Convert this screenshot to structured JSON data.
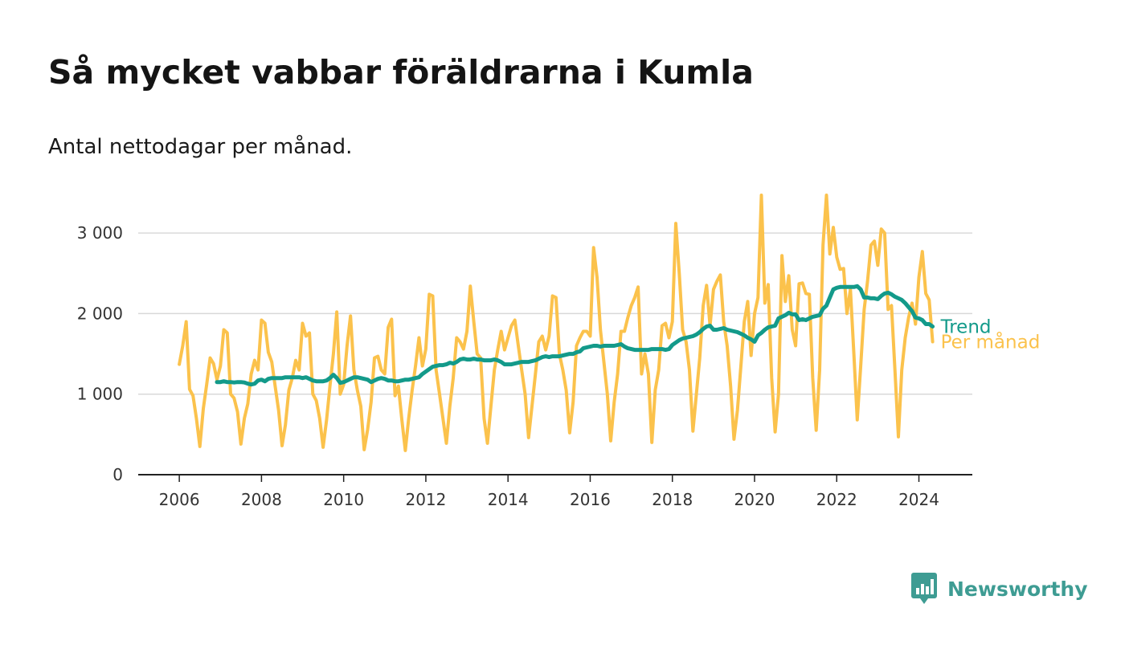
{
  "header": {
    "title": "Så mycket vabbar föräldrarna i Kumla",
    "subtitle": "Antal nettodagar per månad."
  },
  "brand": {
    "name": "Newsworthy",
    "icon": "newsworthy-logo-icon"
  },
  "colors": {
    "monthly": "#fbc24c",
    "trend": "#139a8a",
    "grid": "#d9d9d9",
    "axis": "#222222",
    "brand": "#3e9c93"
  },
  "chart_data": {
    "type": "line",
    "title": "Så mycket vabbar föräldrarna i Kumla",
    "subtitle": "Antal nettodagar per månad.",
    "xlabel": "",
    "ylabel": "",
    "xlim": [
      2005,
      2025.3
    ],
    "ylim": [
      0,
      3500
    ],
    "x_ticks": [
      2006,
      2008,
      2010,
      2012,
      2014,
      2016,
      2018,
      2020,
      2022,
      2024
    ],
    "x_tick_labels": [
      "2006",
      "2008",
      "2010",
      "2012",
      "2014",
      "2016",
      "2018",
      "2020",
      "2022",
      "2024"
    ],
    "y_ticks": [
      0,
      1000,
      2000,
      3000
    ],
    "y_tick_labels": [
      "0",
      "1 000",
      "2 000",
      "3 000"
    ],
    "grid": true,
    "legend": "line-end labels",
    "series": [
      {
        "name": "Per månad",
        "color": "#fbc24c",
        "x": [
          2006.0,
          2006.0833,
          2006.1667,
          2006.25,
          2006.3333,
          2006.4167,
          2006.5,
          2006.5833,
          2006.6667,
          2006.75,
          2006.8333,
          2006.9167,
          2007.0,
          2007.0833,
          2007.1667,
          2007.25,
          2007.3333,
          2007.4167,
          2007.5,
          2007.5833,
          2007.6667,
          2007.75,
          2007.8333,
          2007.9167,
          2008.0,
          2008.0833,
          2008.1667,
          2008.25,
          2008.3333,
          2008.4167,
          2008.5,
          2008.5833,
          2008.6667,
          2008.75,
          2008.8333,
          2008.9167,
          2009.0,
          2009.0833,
          2009.1667,
          2009.25,
          2009.3333,
          2009.4167,
          2009.5,
          2009.5833,
          2009.6667,
          2009.75,
          2009.8333,
          2009.9167,
          2010.0,
          2010.0833,
          2010.1667,
          2010.25,
          2010.3333,
          2010.4167,
          2010.5,
          2010.5833,
          2010.6667,
          2010.75,
          2010.8333,
          2010.9167,
          2011.0,
          2011.0833,
          2011.1667,
          2011.25,
          2011.3333,
          2011.4167,
          2011.5,
          2011.5833,
          2011.6667,
          2011.75,
          2011.8333,
          2011.9167,
          2012.0,
          2012.0833,
          2012.1667,
          2012.25,
          2012.3333,
          2012.4167,
          2012.5,
          2012.5833,
          2012.6667,
          2012.75,
          2012.8333,
          2012.9167,
          2013.0,
          2013.0833,
          2013.1667,
          2013.25,
          2013.3333,
          2013.4167,
          2013.5,
          2013.5833,
          2013.6667,
          2013.75,
          2013.8333,
          2013.9167,
          2014.0,
          2014.0833,
          2014.1667,
          2014.25,
          2014.3333,
          2014.4167,
          2014.5,
          2014.5833,
          2014.6667,
          2014.75,
          2014.8333,
          2014.9167,
          2015.0,
          2015.0833,
          2015.1667,
          2015.25,
          2015.3333,
          2015.4167,
          2015.5,
          2015.5833,
          2015.6667,
          2015.75,
          2015.8333,
          2015.9167,
          2016.0,
          2016.0833,
          2016.1667,
          2016.25,
          2016.3333,
          2016.4167,
          2016.5,
          2016.5833,
          2016.6667,
          2016.75,
          2016.8333,
          2016.9167,
          2017.0,
          2017.0833,
          2017.1667,
          2017.25,
          2017.3333,
          2017.4167,
          2017.5,
          2017.5833,
          2017.6667,
          2017.75,
          2017.8333,
          2017.9167,
          2018.0,
          2018.0833,
          2018.1667,
          2018.25,
          2018.3333,
          2018.4167,
          2018.5,
          2018.5833,
          2018.6667,
          2018.75,
          2018.8333,
          2018.9167,
          2019.0,
          2019.0833,
          2019.1667,
          2019.25,
          2019.3333,
          2019.4167,
          2019.5,
          2019.5833,
          2019.6667,
          2019.75,
          2019.8333,
          2019.9167,
          2020.0,
          2020.0833,
          2020.1667,
          2020.25,
          2020.3333,
          2020.4167,
          2020.5,
          2020.5833,
          2020.6667,
          2020.75,
          2020.8333,
          2020.9167,
          2021.0,
          2021.0833,
          2021.1667,
          2021.25,
          2021.3333,
          2021.4167,
          2021.5,
          2021.5833,
          2021.6667,
          2021.75,
          2021.8333,
          2021.9167,
          2022.0,
          2022.0833,
          2022.1667,
          2022.25,
          2022.3333,
          2022.4167,
          2022.5,
          2022.5833,
          2022.6667,
          2022.75,
          2022.8333,
          2022.9167,
          2023.0,
          2023.0833,
          2023.1667,
          2023.25,
          2023.3333,
          2023.4167,
          2023.5,
          2023.5833,
          2023.6667,
          2023.75,
          2023.8333,
          2023.9167,
          2024.0,
          2024.0833,
          2024.1667,
          2024.25,
          2024.3333
        ],
        "values": [
          1370,
          1600,
          1900,
          1060,
          980,
          700,
          350,
          820,
          1120,
          1450,
          1380,
          1180,
          1350,
          1800,
          1760,
          1000,
          950,
          780,
          380,
          700,
          880,
          1250,
          1420,
          1300,
          1920,
          1880,
          1520,
          1400,
          1100,
          800,
          360,
          620,
          1050,
          1200,
          1420,
          1300,
          1880,
          1720,
          1760,
          1000,
          920,
          700,
          340,
          680,
          1100,
          1500,
          2020,
          1000,
          1120,
          1600,
          1970,
          1300,
          1050,
          850,
          310,
          560,
          900,
          1450,
          1470,
          1300,
          1250,
          1830,
          1930,
          980,
          1100,
          680,
          300,
          700,
          1050,
          1350,
          1700,
          1350,
          1560,
          2240,
          2220,
          1300,
          1000,
          700,
          390,
          850,
          1200,
          1700,
          1650,
          1560,
          1780,
          2340,
          1900,
          1500,
          1450,
          700,
          390,
          850,
          1300,
          1550,
          1780,
          1550,
          1700,
          1850,
          1920,
          1600,
          1300,
          1000,
          460,
          850,
          1250,
          1650,
          1720,
          1550,
          1720,
          2220,
          2200,
          1500,
          1300,
          1050,
          520,
          900,
          1600,
          1700,
          1780,
          1780,
          1720,
          2820,
          2450,
          1800,
          1400,
          1000,
          420,
          900,
          1250,
          1780,
          1780,
          1950,
          2100,
          2200,
          2330,
          1250,
          1500,
          1250,
          400,
          1050,
          1300,
          1850,
          1880,
          1700,
          1900,
          3120,
          2500,
          1800,
          1650,
          1300,
          540,
          1000,
          1450,
          2100,
          2350,
          1850,
          2300,
          2400,
          2480,
          1900,
          1600,
          1100,
          440,
          800,
          1350,
          1900,
          2150,
          1480,
          2000,
          2200,
          3470,
          2130,
          2360,
          1200,
          530,
          1000,
          2720,
          2150,
          2470,
          1800,
          1600,
          2370,
          2380,
          2250,
          2240,
          1200,
          550,
          1300,
          2850,
          3470,
          2740,
          3070,
          2700,
          2550,
          2560,
          2000,
          2300,
          1500,
          680,
          1350,
          2050,
          2400,
          2850,
          2900,
          2600,
          3050,
          3000,
          2050,
          2100,
          1300,
          470,
          1300,
          1700,
          1950,
          2130,
          1870,
          2450,
          2770,
          2250,
          2170,
          1650
        ]
      },
      {
        "name": "Trend",
        "color": "#139a8a",
        "x": [
          2006.9167,
          2007.0,
          2007.0833,
          2007.1667,
          2007.25,
          2007.3333,
          2007.4167,
          2007.5,
          2007.5833,
          2007.6667,
          2007.75,
          2007.8333,
          2007.9167,
          2008.0,
          2008.0833,
          2008.1667,
          2008.25,
          2008.3333,
          2008.4167,
          2008.5,
          2008.5833,
          2008.6667,
          2008.75,
          2008.8333,
          2008.9167,
          2009.0,
          2009.0833,
          2009.1667,
          2009.25,
          2009.3333,
          2009.4167,
          2009.5,
          2009.5833,
          2009.6667,
          2009.75,
          2009.8333,
          2009.9167,
          2010.0,
          2010.0833,
          2010.1667,
          2010.25,
          2010.3333,
          2010.4167,
          2010.5,
          2010.5833,
          2010.6667,
          2010.75,
          2010.8333,
          2010.9167,
          2011.0,
          2011.0833,
          2011.1667,
          2011.25,
          2011.3333,
          2011.4167,
          2011.5,
          2011.5833,
          2011.6667,
          2011.75,
          2011.8333,
          2011.9167,
          2012.0,
          2012.0833,
          2012.1667,
          2012.25,
          2012.3333,
          2012.4167,
          2012.5,
          2012.5833,
          2012.6667,
          2012.75,
          2012.8333,
          2012.9167,
          2013.0,
          2013.0833,
          2013.1667,
          2013.25,
          2013.3333,
          2013.4167,
          2013.5,
          2013.5833,
          2013.6667,
          2013.75,
          2013.8333,
          2013.9167,
          2014.0,
          2014.0833,
          2014.1667,
          2014.25,
          2014.3333,
          2014.4167,
          2014.5,
          2014.5833,
          2014.6667,
          2014.75,
          2014.8333,
          2014.9167,
          2015.0,
          2015.0833,
          2015.1667,
          2015.25,
          2015.3333,
          2015.4167,
          2015.5,
          2015.5833,
          2015.6667,
          2015.75,
          2015.8333,
          2015.9167,
          2016.0,
          2016.0833,
          2016.1667,
          2016.25,
          2016.3333,
          2016.4167,
          2016.5,
          2016.5833,
          2016.6667,
          2016.75,
          2016.8333,
          2016.9167,
          2017.0,
          2017.0833,
          2017.1667,
          2017.25,
          2017.3333,
          2017.4167,
          2017.5,
          2017.5833,
          2017.6667,
          2017.75,
          2017.8333,
          2017.9167,
          2018.0,
          2018.0833,
          2018.1667,
          2018.25,
          2018.3333,
          2018.4167,
          2018.5,
          2018.5833,
          2018.6667,
          2018.75,
          2018.8333,
          2018.9167,
          2019.0,
          2019.0833,
          2019.1667,
          2019.25,
          2019.3333,
          2019.4167,
          2019.5,
          2019.5833,
          2019.6667,
          2019.75,
          2019.8333,
          2019.9167,
          2020.0,
          2020.0833,
          2020.1667,
          2020.25,
          2020.3333,
          2020.4167,
          2020.5,
          2020.5833,
          2020.6667,
          2020.75,
          2020.8333,
          2020.9167,
          2021.0,
          2021.0833,
          2021.1667,
          2021.25,
          2021.3333,
          2021.4167,
          2021.5,
          2021.5833,
          2021.6667,
          2021.75,
          2021.8333,
          2021.9167,
          2022.0,
          2022.0833,
          2022.1667,
          2022.25,
          2022.3333,
          2022.4167,
          2022.5,
          2022.5833,
          2022.6667,
          2022.75,
          2022.8333,
          2022.9167,
          2023.0,
          2023.0833,
          2023.1667,
          2023.25,
          2023.3333,
          2023.4167,
          2023.5,
          2023.5833,
          2023.6667,
          2023.75,
          2023.8333,
          2023.9167,
          2024.0,
          2024.0833,
          2024.1667,
          2024.25,
          2024.3333
        ],
        "values": [
          1150,
          1150,
          1160,
          1150,
          1150,
          1145,
          1150,
          1150,
          1145,
          1130,
          1120,
          1130,
          1170,
          1180,
          1160,
          1190,
          1200,
          1200,
          1200,
          1200,
          1210,
          1210,
          1210,
          1210,
          1210,
          1200,
          1210,
          1190,
          1170,
          1160,
          1160,
          1160,
          1170,
          1200,
          1240,
          1200,
          1140,
          1150,
          1170,
          1190,
          1210,
          1210,
          1200,
          1190,
          1180,
          1150,
          1170,
          1190,
          1200,
          1190,
          1170,
          1170,
          1160,
          1160,
          1170,
          1180,
          1180,
          1190,
          1200,
          1210,
          1250,
          1280,
          1310,
          1340,
          1350,
          1360,
          1360,
          1370,
          1390,
          1380,
          1400,
          1430,
          1440,
          1430,
          1430,
          1440,
          1430,
          1430,
          1420,
          1420,
          1420,
          1430,
          1420,
          1400,
          1370,
          1370,
          1370,
          1380,
          1390,
          1400,
          1400,
          1400,
          1410,
          1420,
          1440,
          1460,
          1470,
          1460,
          1470,
          1470,
          1470,
          1480,
          1490,
          1500,
          1500,
          1520,
          1530,
          1570,
          1580,
          1590,
          1600,
          1600,
          1590,
          1600,
          1600,
          1600,
          1600,
          1610,
          1620,
          1590,
          1570,
          1560,
          1550,
          1550,
          1550,
          1550,
          1550,
          1560,
          1560,
          1560,
          1560,
          1550,
          1560,
          1610,
          1640,
          1670,
          1690,
          1700,
          1710,
          1720,
          1740,
          1770,
          1810,
          1840,
          1850,
          1800,
          1800,
          1810,
          1820,
          1800,
          1790,
          1780,
          1770,
          1750,
          1730,
          1700,
          1680,
          1650,
          1730,
          1760,
          1800,
          1830,
          1840,
          1850,
          1940,
          1960,
          1980,
          2010,
          1990,
          1990,
          1920,
          1930,
          1920,
          1940,
          1960,
          1970,
          1980,
          2060,
          2100,
          2200,
          2300,
          2320,
          2330,
          2330,
          2330,
          2330,
          2330,
          2340,
          2300,
          2200,
          2200,
          2190,
          2190,
          2180,
          2220,
          2250,
          2260,
          2240,
          2210,
          2190,
          2170,
          2130,
          2080,
          2030,
          1950,
          1940,
          1920,
          1870,
          1870,
          1840
        ]
      }
    ]
  }
}
